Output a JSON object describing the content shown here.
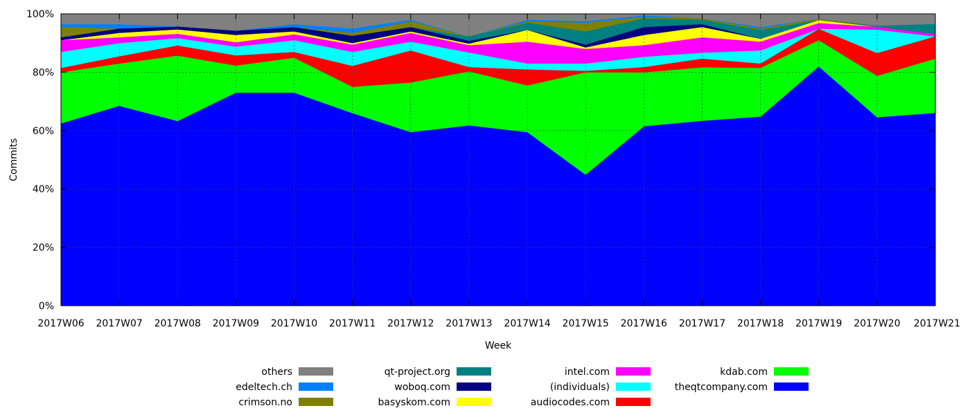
{
  "chart_data": {
    "type": "area",
    "stacked": true,
    "percent": true,
    "title": "",
    "xlabel": "Week",
    "ylabel": "Commits",
    "ylim": [
      0,
      100
    ],
    "y_ticks": [
      "0%",
      "20%",
      "40%",
      "60%",
      "80%",
      "100%"
    ],
    "grid": true,
    "legend_position": "bottom",
    "categories": [
      "2017W06",
      "2017W07",
      "2017W08",
      "2017W09",
      "2017W10",
      "2017W11",
      "2017W12",
      "2017W13",
      "2017W14",
      "2017W15",
      "2017W16",
      "2017W17",
      "2017W18",
      "2017W19",
      "2017W20",
      "2017W21"
    ],
    "series": [
      {
        "name": "theqtcompany.com",
        "color": "#0000ff",
        "values": [
          62.5,
          68.5,
          63.3,
          73.0,
          73.0,
          66.0,
          59.5,
          61.8,
          59.5,
          44.9,
          61.5,
          63.4,
          64.8,
          82.0,
          64.6,
          66.1
        ]
      },
      {
        "name": "kdab.com",
        "color": "#00ff00",
        "values": [
          17.5,
          14.5,
          22.4,
          9.3,
          12.0,
          9.0,
          17.0,
          18.5,
          16.0,
          35.1,
          18.5,
          18.3,
          16.7,
          9.0,
          14.2,
          18.6
        ]
      },
      {
        "name": "audiocodes.com",
        "color": "#ff0000",
        "values": [
          1.5,
          2.5,
          3.5,
          3.5,
          2.0,
          7.2,
          11.0,
          1.5,
          5.5,
          0.5,
          1.8,
          3.0,
          1.5,
          3.9,
          7.8,
          7.6
        ]
      },
      {
        "name": "(individuals)",
        "color": "#00ffff",
        "values": [
          5.5,
          4.5,
          2.5,
          3.0,
          4.0,
          4.8,
          3.0,
          5.0,
          2.0,
          2.5,
          3.5,
          2.0,
          4.5,
          0.0,
          8.0,
          0.0
        ]
      },
      {
        "name": "intel.com",
        "color": "#ff00ff",
        "values": [
          4.0,
          2.0,
          1.5,
          1.5,
          2.0,
          2.5,
          3.0,
          2.5,
          7.5,
          5.0,
          4.0,
          5.3,
          3.0,
          2.0,
          1.0,
          0.8
        ]
      },
      {
        "name": "basyskom.com",
        "color": "#ffff00",
        "values": [
          0.0,
          1.5,
          1.5,
          2.5,
          1.0,
          0.5,
          0.5,
          0.5,
          4.0,
          0.5,
          3.5,
          3.5,
          1.0,
          1.0,
          0.0,
          0.0
        ]
      },
      {
        "name": "woboq.com",
        "color": "#000080",
        "values": [
          1.0,
          1.5,
          1.0,
          1.5,
          1.5,
          2.5,
          1.5,
          1.0,
          0.0,
          1.0,
          2.7,
          1.0,
          0.0,
          0.0,
          0.0,
          0.0
        ]
      },
      {
        "name": "qt-project.org",
        "color": "#008080",
        "values": [
          0.0,
          0.0,
          0.0,
          0.0,
          0.0,
          0.0,
          0.0,
          1.5,
          2.5,
          4.5,
          3.0,
          1.5,
          3.0,
          0.0,
          0.4,
          3.5
        ]
      },
      {
        "name": "crimson.no",
        "color": "#808000",
        "values": [
          3.5,
          0.0,
          0.0,
          0.0,
          0.0,
          1.0,
          2.0,
          0.0,
          0.5,
          3.0,
          0.5,
          0.5,
          0.5,
          0.5,
          0.0,
          0.0
        ]
      },
      {
        "name": "edeltech.ch",
        "color": "#0080ff",
        "values": [
          1.0,
          1.5,
          0.0,
          0.0,
          1.0,
          1.5,
          0.5,
          0.0,
          0.5,
          0.5,
          0.5,
          0.0,
          0.5,
          0.0,
          0.0,
          0.0
        ]
      },
      {
        "name": "others",
        "color": "#808080",
        "values": [
          3.5,
          3.5,
          4.3,
          5.7,
          3.5,
          5.0,
          2.0,
          7.7,
          2.0,
          2.5,
          0.5,
          1.5,
          4.5,
          1.6,
          4.0,
          3.4
        ]
      }
    ]
  }
}
